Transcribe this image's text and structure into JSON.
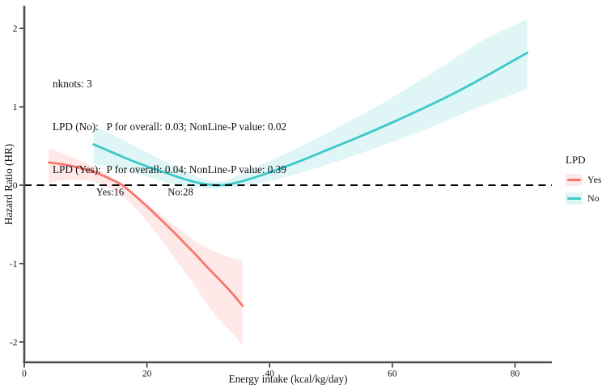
{
  "annotation": {
    "lines": [
      "nknots: 3",
      "LPD (No):   P for overall: 0.03; NonLine-P value: 0.02",
      "LPD (Yes):  P for overall: 0.04; NonLine-P value: 0.39"
    ]
  },
  "chart_data": {
    "type": "line",
    "title": "",
    "xlabel": "Energy intake (kcal/kg/day)",
    "ylabel": "Hazard Ratio (HR)",
    "xlim": [
      0,
      86
    ],
    "ylim": [
      -2.26,
      2.28
    ],
    "x_ticks": [
      0,
      20,
      40,
      60,
      80
    ],
    "y_ticks": [
      -2,
      -1,
      0,
      1,
      2
    ],
    "grid": false,
    "reference_line_y": 0,
    "reference_line_style": "dashed-black",
    "axis_color": "#4d4d4d",
    "legend": {
      "title": "LPD",
      "position": "right",
      "entries": [
        {
          "label": "Yes",
          "color": "#F8766D"
        },
        {
          "label": "No",
          "color": "#3EC8CA"
        }
      ]
    },
    "series": [
      {
        "name": "Yes",
        "color": "#F8766D",
        "band_color": "rgba(248,118,109,0.16)",
        "label": {
          "text": "Yes:16",
          "x": 14,
          "y": -0.1
        },
        "x": [
          4,
          6,
          8,
          10,
          12,
          14,
          16,
          18,
          20,
          22,
          24,
          26,
          28,
          30,
          32,
          34,
          35.6
        ],
        "y": [
          0.29,
          0.27,
          0.24,
          0.2,
          0.15,
          0.08,
          0.0,
          -0.13,
          -0.27,
          -0.42,
          -0.57,
          -0.73,
          -0.89,
          -1.06,
          -1.22,
          -1.39,
          -1.54
        ],
        "band_upper": [
          0.47,
          0.41,
          0.35,
          0.28,
          0.21,
          0.11,
          -0.01,
          -0.12,
          -0.24,
          -0.36,
          -0.48,
          -0.6,
          -0.72,
          -0.81,
          -0.88,
          -0.93,
          -0.96
        ],
        "band_lower": [
          0.02,
          0.06,
          0.07,
          0.06,
          0.03,
          -0.04,
          -0.14,
          -0.28,
          -0.46,
          -0.66,
          -0.87,
          -1.09,
          -1.31,
          -1.54,
          -1.73,
          -1.9,
          -2.04
        ]
      },
      {
        "name": "No",
        "color": "#3EC8CA",
        "band_color": "rgba(62,200,202,0.16)",
        "label": {
          "text": "No:28",
          "x": 25.5,
          "y": -0.1
        },
        "x": [
          11.3,
          14,
          17,
          20,
          23,
          26,
          29,
          32,
          35,
          38,
          42,
          46,
          50,
          55,
          60,
          65,
          70,
          75,
          82
        ],
        "y": [
          0.52,
          0.43,
          0.33,
          0.24,
          0.16,
          0.08,
          0.02,
          0.0,
          0.04,
          0.11,
          0.22,
          0.34,
          0.47,
          0.63,
          0.8,
          0.98,
          1.17,
          1.38,
          1.69
        ],
        "band_upper": [
          0.75,
          0.66,
          0.54,
          0.42,
          0.3,
          0.19,
          0.09,
          0.05,
          0.13,
          0.24,
          0.38,
          0.53,
          0.69,
          0.9,
          1.12,
          1.36,
          1.61,
          1.86,
          2.12
        ],
        "band_lower": [
          0.27,
          0.23,
          0.17,
          0.11,
          0.04,
          -0.02,
          -0.04,
          -0.04,
          -0.02,
          0.02,
          0.09,
          0.18,
          0.28,
          0.41,
          0.55,
          0.7,
          0.86,
          1.02,
          1.23
        ]
      }
    ]
  }
}
